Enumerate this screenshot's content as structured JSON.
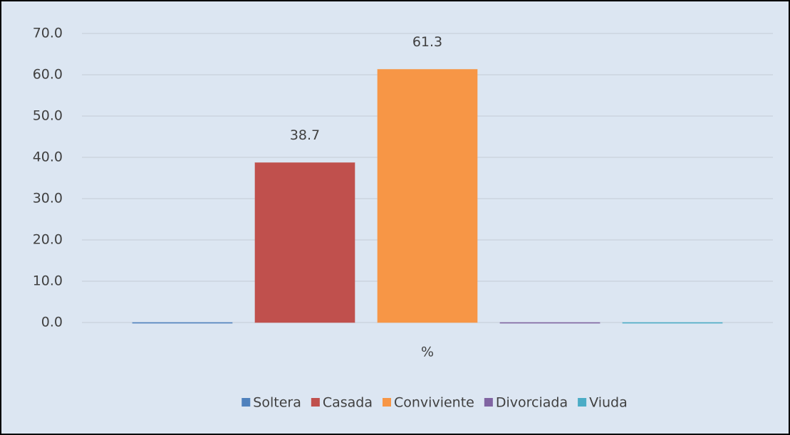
{
  "chart_data": {
    "type": "bar",
    "categories": [
      "%"
    ],
    "series": [
      {
        "name": "Soltera",
        "color": "#4f81bd",
        "values": [
          0
        ]
      },
      {
        "name": "Casada",
        "color": "#c0504d",
        "values": [
          38.7
        ],
        "value_labels": [
          "38.7"
        ]
      },
      {
        "name": "Conviviente",
        "color": "#f79646",
        "values": [
          61.3
        ],
        "value_labels": [
          "61.3"
        ]
      },
      {
        "name": "Divorciada",
        "color": "#8064a2",
        "values": [
          0
        ]
      },
      {
        "name": "Viuda",
        "color": "#4bacc6",
        "values": [
          0
        ]
      }
    ],
    "ylim": [
      0,
      70
    ],
    "yticks": [
      {
        "value": 0,
        "label": "0.0"
      },
      {
        "value": 10,
        "label": "10.0"
      },
      {
        "value": 20,
        "label": "20.0"
      },
      {
        "value": 30,
        "label": "30.0"
      },
      {
        "value": 40,
        "label": "40.0"
      },
      {
        "value": 50,
        "label": "50.0"
      },
      {
        "value": 60,
        "label": "60.0"
      },
      {
        "value": 70,
        "label": "70.0"
      }
    ],
    "grid": true,
    "legend": "bottom"
  }
}
